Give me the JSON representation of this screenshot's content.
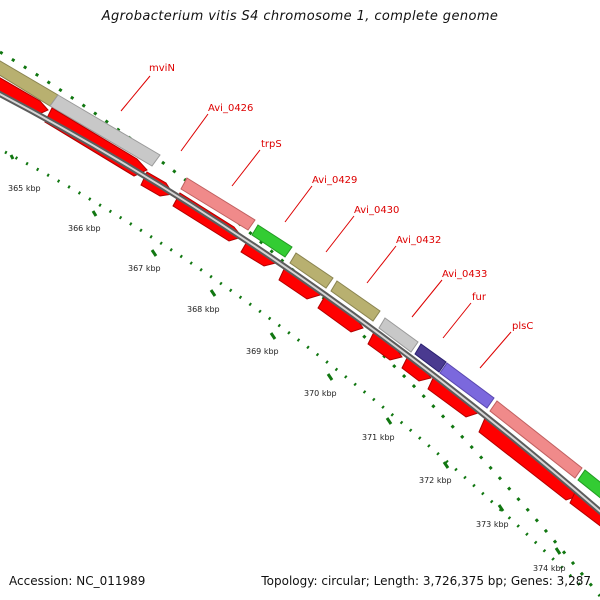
{
  "title": "Agrobacterium vitis S4 chromosome 1, complete genome",
  "footer": {
    "accession": "Accession: NC_011989",
    "summary": "Topology: circular; Length: 3,726,375 bp; Genes: 3,287"
  },
  "colors": {
    "cds_red": "#ff0000",
    "tick_green": "#117711",
    "backbone": "#808080",
    "label_red": "#dd0000"
  },
  "kbp_labels": [
    "365 kbp",
    "366 kbp",
    "367 kbp",
    "368 kbp",
    "369 kbp",
    "370 kbp",
    "371 kbp",
    "372 kbp",
    "373 kbp",
    "374 kbp"
  ],
  "gene_labels": [
    "mviN",
    "Avi_0426",
    "trpS",
    "Avi_0429",
    "Avi_0430",
    "Avi_0432",
    "Avi_0433",
    "fur",
    "plsC"
  ],
  "cog_colors": {
    "olive": "#b8b070",
    "gray": "#c8c8c8",
    "salmon": "#f08a8a",
    "green": "#33cc33",
    "darkpurple": "#4a3a90",
    "purple": "#7b68dd"
  }
}
